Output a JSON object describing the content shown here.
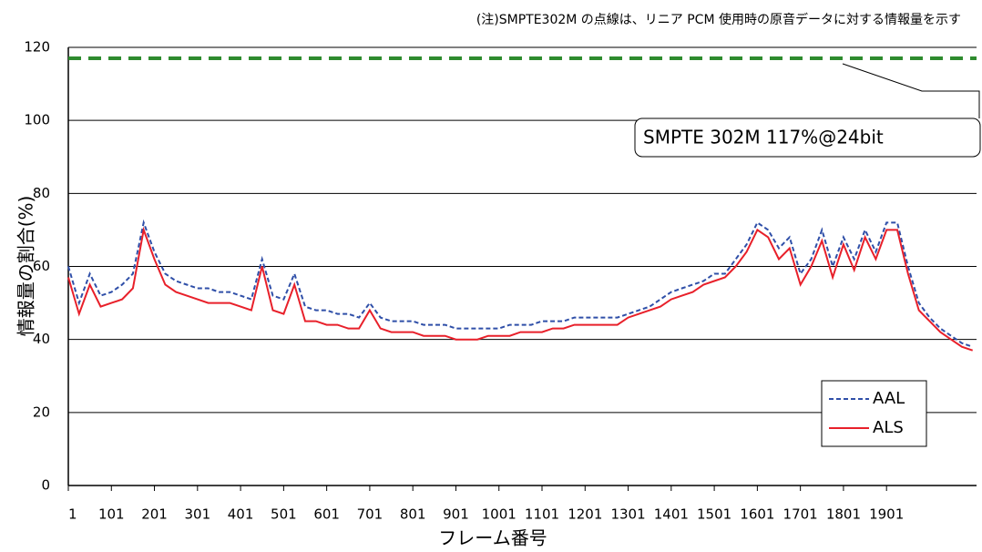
{
  "chart_data": {
    "type": "line",
    "note": "(注)SMPTE302M の点線は、リニア PCM 使用時の原音データに対する情報量を示す",
    "xlabel": "フレーム番号",
    "ylabel": "情報量の割合(%)",
    "x": [
      1,
      26,
      51,
      76,
      101,
      126,
      151,
      176,
      201,
      226,
      251,
      276,
      301,
      326,
      351,
      376,
      401,
      426,
      451,
      476,
      501,
      526,
      551,
      576,
      601,
      626,
      651,
      676,
      701,
      726,
      751,
      776,
      801,
      826,
      851,
      876,
      901,
      926,
      951,
      976,
      1001,
      1026,
      1051,
      1076,
      1101,
      1126,
      1151,
      1176,
      1201,
      1226,
      1251,
      1276,
      1301,
      1326,
      1351,
      1376,
      1401,
      1426,
      1451,
      1476,
      1501,
      1526,
      1551,
      1576,
      1601,
      1626,
      1651,
      1676,
      1701,
      1726,
      1751,
      1776,
      1801,
      1826,
      1851,
      1876,
      1901,
      1926,
      1951,
      1976,
      2001,
      2026,
      2051,
      2076,
      2101
    ],
    "series": [
      {
        "name": "AAL",
        "color": "#2f4fa8",
        "line_style": "dashed",
        "values": [
          60,
          50,
          58,
          52,
          53,
          55,
          58,
          72,
          64,
          58,
          56,
          55,
          54,
          54,
          53,
          53,
          52,
          51,
          62,
          52,
          51,
          58,
          49,
          48,
          48,
          47,
          47,
          46,
          50,
          46,
          45,
          45,
          45,
          44,
          44,
          44,
          43,
          43,
          43,
          43,
          43,
          44,
          44,
          44,
          45,
          45,
          45,
          46,
          46,
          46,
          46,
          46,
          47,
          48,
          49,
          51,
          53,
          54,
          55,
          56,
          58,
          58,
          62,
          66,
          72,
          70,
          65,
          68,
          58,
          62,
          70,
          60,
          68,
          62,
          70,
          64,
          72,
          72,
          60,
          50,
          46,
          43,
          41,
          39,
          38
        ]
      },
      {
        "name": "ALS",
        "color": "#e8202a",
        "line_style": "solid",
        "values": [
          57,
          47,
          55,
          49,
          50,
          51,
          54,
          70,
          62,
          55,
          53,
          52,
          51,
          50,
          50,
          50,
          49,
          48,
          60,
          48,
          47,
          55,
          45,
          45,
          44,
          44,
          43,
          43,
          48,
          43,
          42,
          42,
          42,
          41,
          41,
          41,
          40,
          40,
          40,
          41,
          41,
          41,
          42,
          42,
          42,
          43,
          43,
          44,
          44,
          44,
          44,
          44,
          46,
          47,
          48,
          49,
          51,
          52,
          53,
          55,
          56,
          57,
          60,
          64,
          70,
          68,
          62,
          65,
          55,
          60,
          67,
          57,
          66,
          59,
          68,
          62,
          70,
          70,
          58,
          48,
          45,
          42,
          40,
          38,
          37
        ]
      }
    ],
    "reference_line": {
      "value": 117,
      "color": "#2e8b2e",
      "label": "SMPTE 302M 117%@24bit"
    },
    "xlim": [
      1,
      2110
    ],
    "xticks": [
      1,
      101,
      201,
      301,
      401,
      501,
      601,
      701,
      801,
      901,
      1001,
      1101,
      1201,
      1301,
      1401,
      1501,
      1601,
      1701,
      1801,
      1901
    ],
    "ylim": [
      0,
      120
    ],
    "yticks": [
      0,
      20,
      40,
      60,
      80,
      100,
      120
    ],
    "grid": true,
    "legend": "lower right"
  }
}
